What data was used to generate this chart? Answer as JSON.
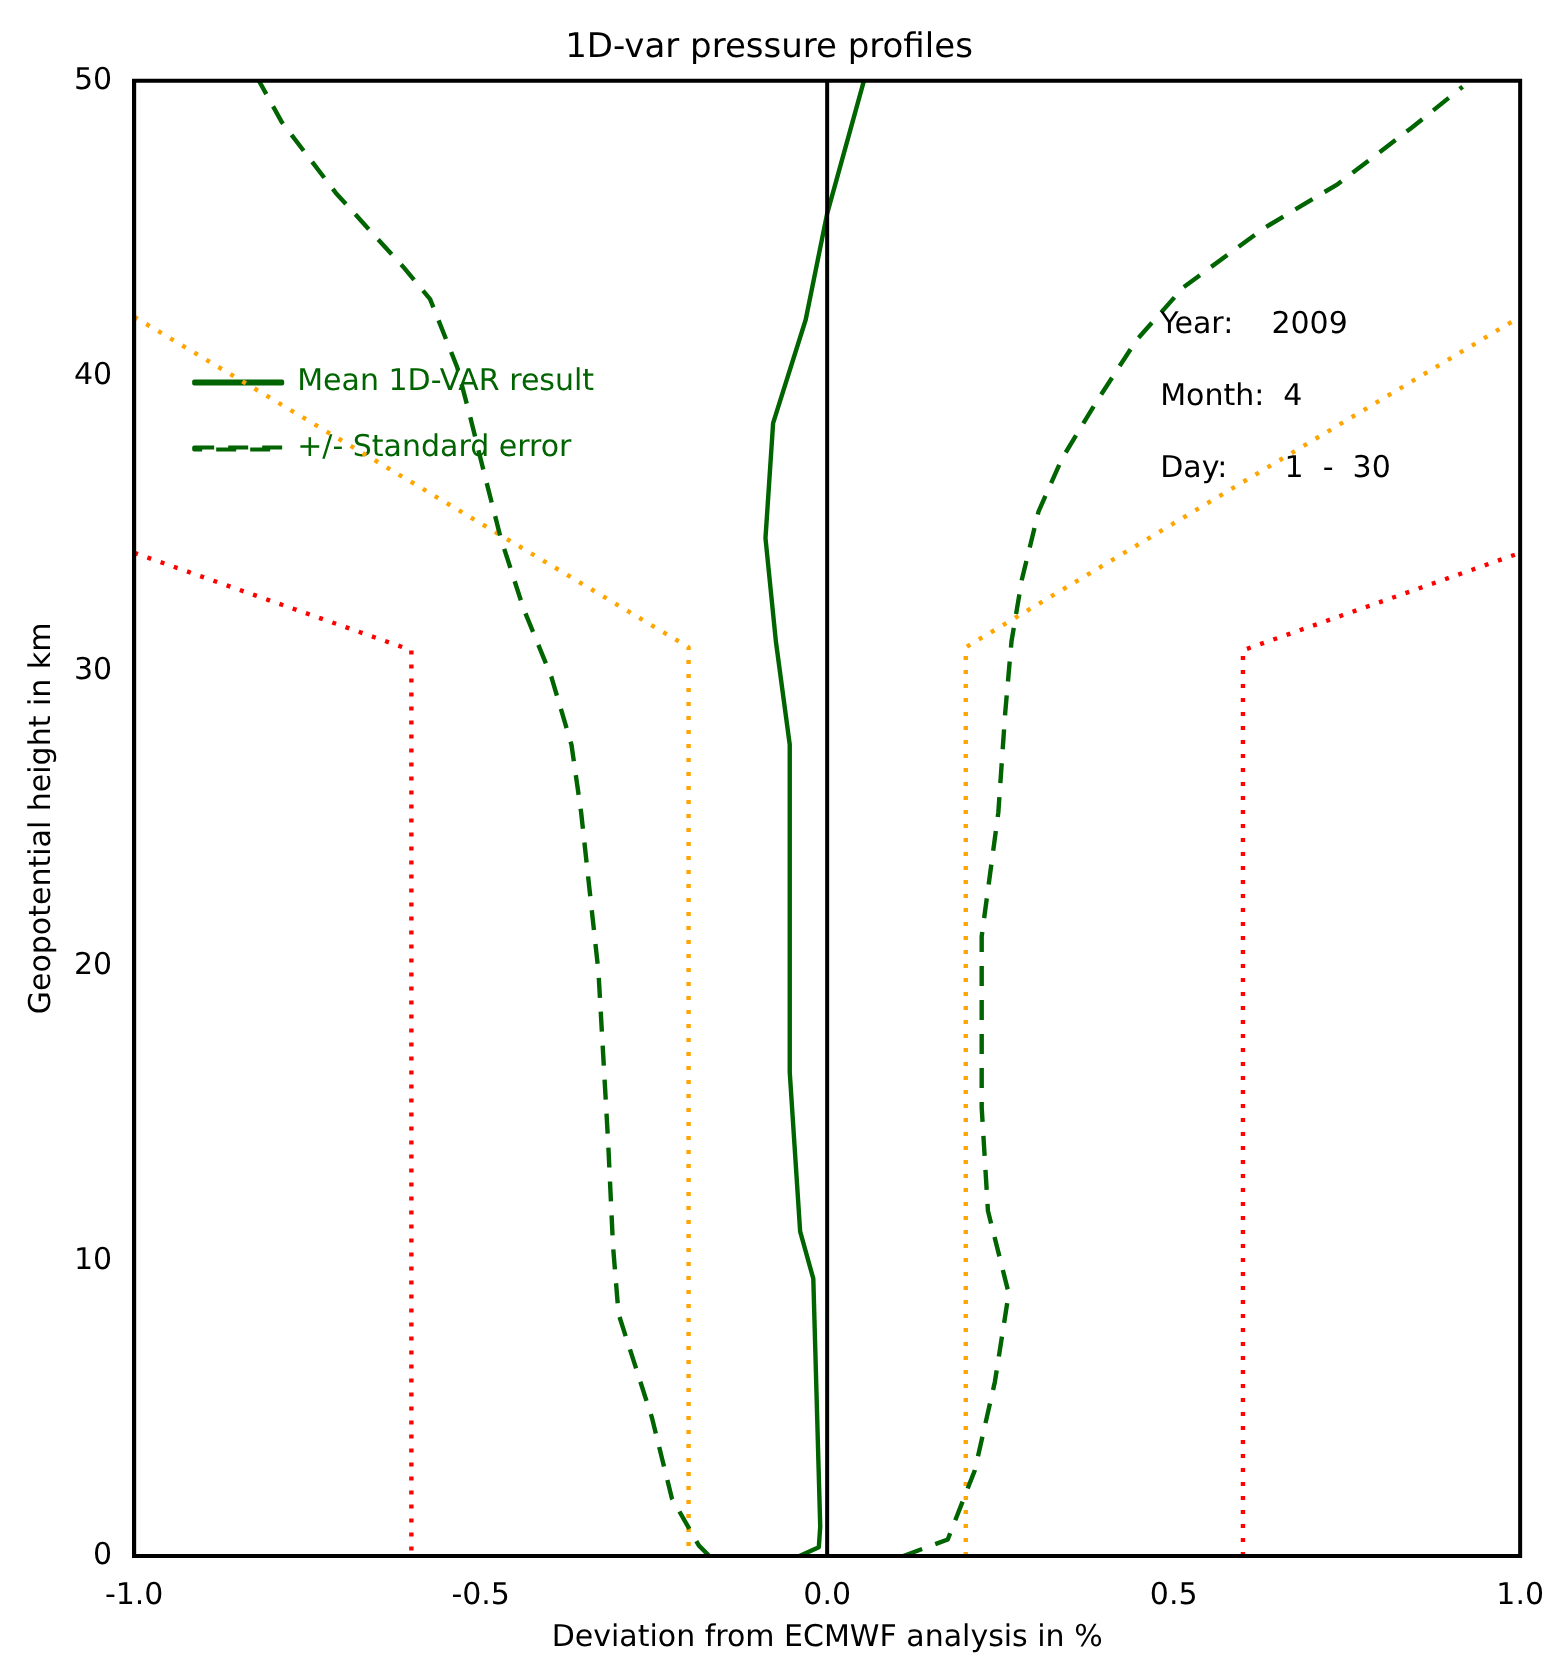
{
  "chart_data": {
    "type": "line",
    "title": "1D-var pressure profiles",
    "xlabel": "Deviation from ECMWF analysis in %",
    "ylabel": "Geopotential height in km",
    "xlim": [
      -1,
      1
    ],
    "xticks": [
      {
        "value": -1,
        "label": "-1.0"
      },
      {
        "value": -0.5,
        "label": "-0.5"
      },
      {
        "value": 0,
        "label": "0.0"
      },
      {
        "value": 0.5,
        "label": "0.5"
      },
      {
        "value": 1,
        "label": "1.0"
      }
    ],
    "ylim": [
      0,
      50
    ],
    "yticks": [
      0,
      10,
      20,
      30,
      40,
      50
    ],
    "grid": false,
    "legend": "top left",
    "marker": "none",
    "series": [
      {
        "name": "Mean 1D-VAR result",
        "color": "#006400",
        "line_style": "solid",
        "x": [
          -0.04,
          -0.012,
          -0.01,
          -0.02,
          -0.039,
          -0.054,
          -0.054,
          -0.074,
          -0.089,
          -0.078,
          -0.031,
          0,
          0.053
        ],
        "values": [
          0,
          0.3,
          1,
          9.4,
          11,
          16.4,
          27.5,
          31,
          34.5,
          38.4,
          41.9,
          45.5,
          50
        ]
      },
      {
        "name": "+/- Standard error",
        "color": "#006400",
        "line_style": "dashed",
        "x": [
          -0.17,
          -0.185,
          -0.224,
          -0.253,
          -0.301,
          -0.309,
          -0.316,
          -0.33,
          -0.355,
          -0.369,
          -0.398,
          -0.438,
          -0.471,
          -0.496,
          -0.515,
          -0.534,
          -0.573,
          -0.612,
          -0.651,
          -0.709,
          -0.787,
          -0.82
        ],
        "values": [
          0,
          0.35,
          1.95,
          4.7,
          8.2,
          10.5,
          14,
          19.8,
          25.2,
          27.5,
          29.8,
          32.1,
          34.5,
          36.8,
          38.6,
          40.3,
          42.6,
          43.7,
          44.7,
          46.2,
          48.6,
          50
        ]
      },
      {
        "color": "#006400",
        "line_style": "dashed",
        "x": [
          0.11,
          0.174,
          0.213,
          0.242,
          0.262,
          0.232,
          0.223,
          0.223,
          0.247,
          0.257,
          0.266,
          0.281,
          0.305,
          0.339,
          0.388,
          0.446,
          0.514,
          0.63,
          0.737,
          0.843,
          0.917
        ],
        "values": [
          0,
          0.56,
          2.9,
          5.9,
          8.9,
          11.7,
          15.2,
          21,
          25.2,
          28.6,
          31,
          33.1,
          35.4,
          37.2,
          39.1,
          41.2,
          43,
          45,
          46.5,
          48.4,
          49.8
        ]
      },
      {
        "color": "#ffa500",
        "line_style": "dotted",
        "x": [
          -1,
          -0.2,
          -0.2
        ],
        "values": [
          42,
          30.8,
          0
        ]
      },
      {
        "color": "#ffa500",
        "line_style": "dotted",
        "x": [
          0.2,
          0.2,
          1
        ],
        "values": [
          0,
          30.8,
          42
        ]
      },
      {
        "color": "#ff0000",
        "line_style": "dotted",
        "x": [
          -1,
          -0.6,
          -0.6
        ],
        "values": [
          34,
          30.7,
          0
        ]
      },
      {
        "color": "#ff0000",
        "line_style": "dotted",
        "x": [
          0.6,
          0.6,
          1
        ],
        "values": [
          0,
          30.7,
          34
        ]
      }
    ],
    "ref_lines": [
      {
        "axis": "x",
        "value": 0,
        "color": "#000000"
      }
    ],
    "annotations": [
      "Year:    2009",
      "Month:  4",
      "Day:      1  -  30"
    ]
  }
}
